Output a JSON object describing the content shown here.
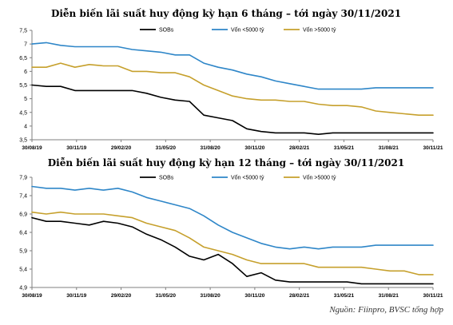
{
  "chart_data": [
    {
      "type": "line",
      "title": "Diễn biến lãi suất huy động kỳ hạn 6 tháng – tới ngày 30/11/2021",
      "x_tick_labels": [
        "30/08/19",
        "30/11/19",
        "29/02/20",
        "31/05/20",
        "31/08/20",
        "30/11/20",
        "28/02/21",
        "31/05/21",
        "31/08/21",
        "30/11/21"
      ],
      "y_ticks": [
        "3,5",
        "4",
        "4,5",
        "5",
        "5,5",
        "6",
        "6,5",
        "7",
        "7,5"
      ],
      "ylim": [
        3.5,
        7.5
      ],
      "legend_position": "top",
      "series": [
        {
          "name": "SOBs",
          "color": "#000000",
          "values": [
            5.5,
            5.45,
            5.45,
            5.3,
            5.3,
            5.3,
            5.3,
            5.3,
            5.2,
            5.05,
            4.95,
            4.9,
            4.4,
            4.3,
            4.2,
            3.9,
            3.8,
            3.75,
            3.75,
            3.75,
            3.7,
            3.75,
            3.75,
            3.75,
            3.75,
            3.75,
            3.75,
            3.75,
            3.75
          ]
        },
        {
          "name": "Vốn <5000 tỷ",
          "color": "#2e86c8",
          "values": [
            7.0,
            7.05,
            6.95,
            6.9,
            6.9,
            6.9,
            6.9,
            6.8,
            6.75,
            6.7,
            6.6,
            6.6,
            6.3,
            6.15,
            6.05,
            5.9,
            5.8,
            5.65,
            5.55,
            5.45,
            5.35,
            5.35,
            5.35,
            5.35,
            5.4,
            5.4,
            5.4,
            5.4,
            5.4
          ]
        },
        {
          "name": "Vốn >5000 tỷ",
          "color": "#c6a02c",
          "values": [
            6.15,
            6.15,
            6.3,
            6.15,
            6.25,
            6.2,
            6.2,
            6.0,
            6.0,
            5.95,
            5.95,
            5.8,
            5.5,
            5.3,
            5.1,
            5.0,
            4.95,
            4.95,
            4.9,
            4.9,
            4.8,
            4.75,
            4.75,
            4.7,
            4.55,
            4.5,
            4.45,
            4.4,
            4.4
          ]
        }
      ]
    },
    {
      "type": "line",
      "title": "Diễn biến lãi suất huy động kỳ hạn 12 tháng – tới ngày 30/11/2021",
      "x_tick_labels": [
        "30/08/19",
        "30/11/19",
        "29/02/20",
        "31/05/20",
        "31/08/20",
        "30/11/20",
        "28/02/21",
        "31/05/21",
        "31/08/21",
        "30/11/21"
      ],
      "y_ticks": [
        "4,9",
        "5,4",
        "5,9",
        "6,4",
        "6,9",
        "7,4",
        "7,9"
      ],
      "ylim": [
        4.9,
        7.9
      ],
      "legend_position": "top",
      "series": [
        {
          "name": "SOBs",
          "color": "#000000",
          "values": [
            6.8,
            6.7,
            6.7,
            6.65,
            6.6,
            6.7,
            6.65,
            6.55,
            6.35,
            6.2,
            6.0,
            5.75,
            5.65,
            5.8,
            5.55,
            5.2,
            5.3,
            5.1,
            5.05,
            5.05,
            5.05,
            5.05,
            5.05,
            5.0,
            5.0,
            5.0,
            5.0,
            5.0,
            5.0
          ]
        },
        {
          "name": "Vốn <5000 tỷ",
          "color": "#2e86c8",
          "values": [
            7.65,
            7.6,
            7.6,
            7.55,
            7.6,
            7.55,
            7.6,
            7.5,
            7.35,
            7.25,
            7.15,
            7.05,
            6.85,
            6.6,
            6.4,
            6.25,
            6.1,
            6.0,
            5.95,
            6.0,
            5.95,
            6.0,
            6.0,
            6.0,
            6.05,
            6.05,
            6.05,
            6.05,
            6.05
          ]
        },
        {
          "name": "Vốn >5000 tỷ",
          "color": "#c6a02c",
          "values": [
            6.95,
            6.9,
            6.95,
            6.9,
            6.9,
            6.9,
            6.85,
            6.8,
            6.65,
            6.55,
            6.45,
            6.25,
            6.0,
            5.9,
            5.8,
            5.65,
            5.55,
            5.55,
            5.55,
            5.55,
            5.45,
            5.45,
            5.45,
            5.45,
            5.4,
            5.35,
            5.35,
            5.25,
            5.25
          ]
        }
      ]
    }
  ],
  "source_note": "Nguồn: Fiinpro, BVSC tổng hợp"
}
